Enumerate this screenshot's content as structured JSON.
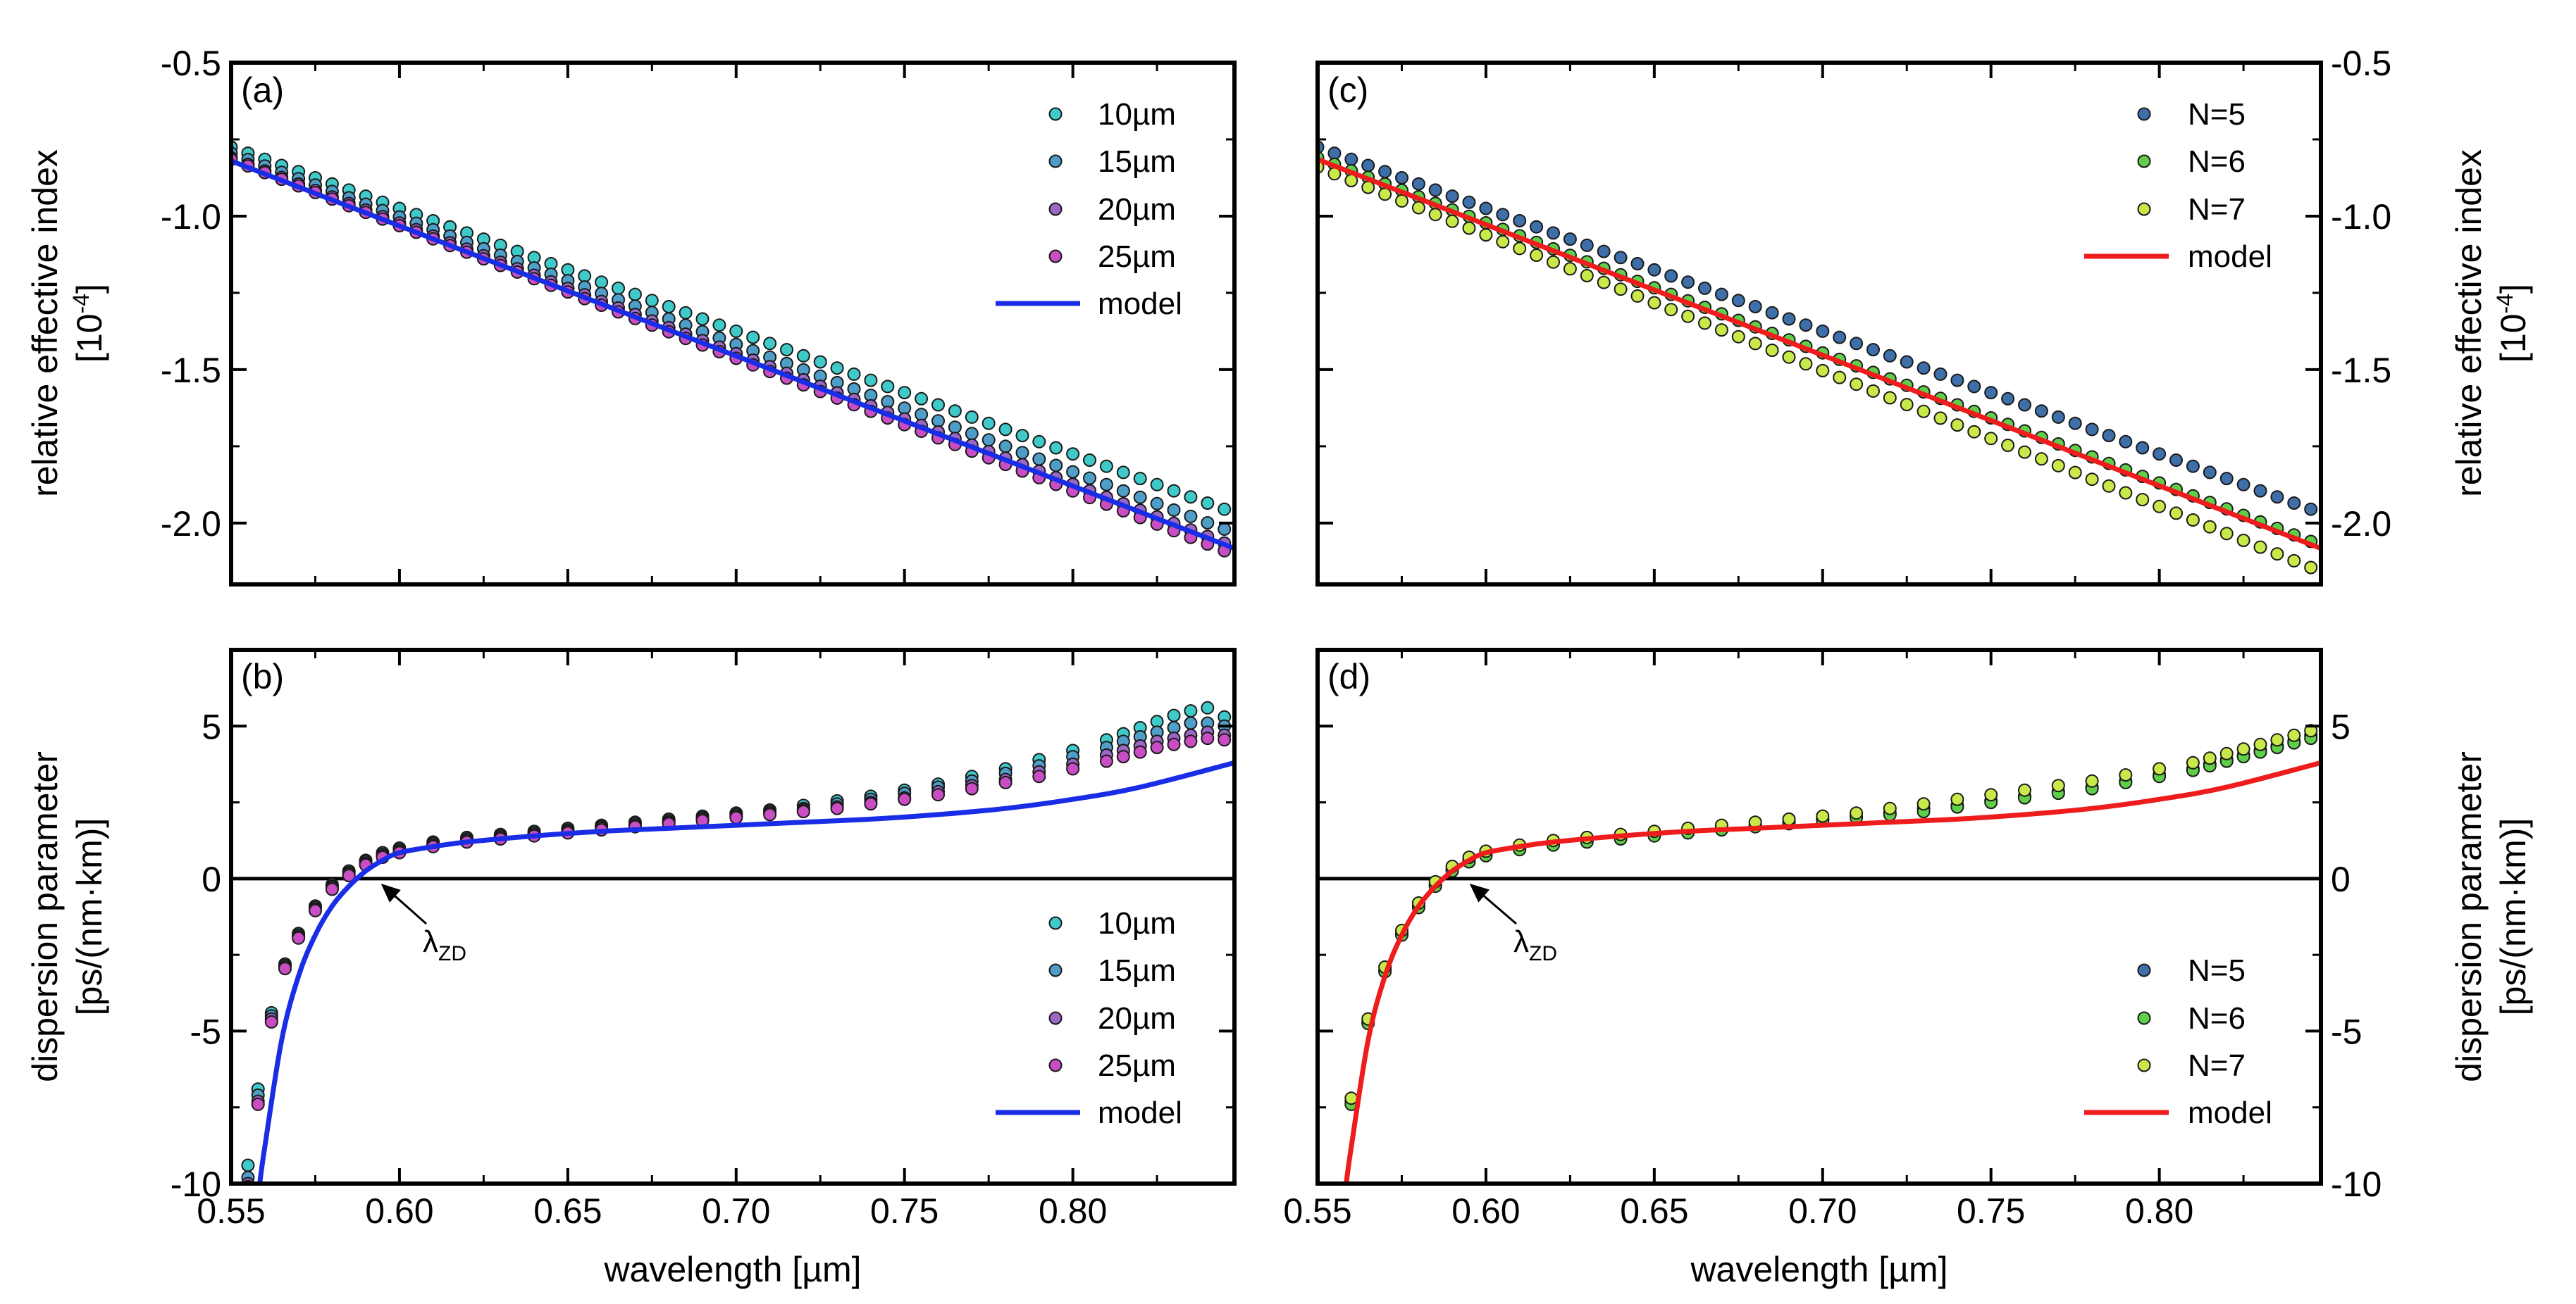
{
  "colors": {
    "10um": "#3fc9c9",
    "15um": "#4f9ec8",
    "20um": "#9b67c2",
    "25um": "#c94ec3",
    "model_ab": "#1a2de6",
    "N5": "#3e6fa8",
    "N6": "#5fcf4a",
    "N7": "#c9e84a",
    "model_cd": "#ee1c1c"
  },
  "xaxis": {
    "label": "wavelength [µm]",
    "ticks": [
      "0.55",
      "0.60",
      "0.65",
      "0.70",
      "0.75",
      "0.80"
    ],
    "range": [
      0.55,
      0.848
    ]
  },
  "top_yaxis": {
    "label_line1": "relative effective index",
    "label_line2_base": "[10",
    "label_line2_exp": "-4",
    "label_line2_end": "]",
    "ticks": [
      "-0.5",
      "-1.0",
      "-1.5",
      "-2.0"
    ],
    "range": [
      -2.2,
      -0.5
    ]
  },
  "bottom_yaxis": {
    "label_line1": "dispersion parameter",
    "label_line2": "[ps/(nm·km)]",
    "ticks": [
      "5",
      "0",
      "-5",
      "-10"
    ],
    "range": [
      -10,
      7.5
    ]
  },
  "annotation": {
    "lambda": "λ",
    "sub": "ZD",
    "x": 0.593
  },
  "chart_data": [
    {
      "panel": "(a)",
      "type": "scatter",
      "xlabel": "wavelength [µm]",
      "ylabel": "relative effective index [10^-4]",
      "xlim": [
        0.55,
        0.848
      ],
      "ylim": [
        -2.2,
        -0.5
      ],
      "legend": "top-right",
      "x": {
        "start": 0.55,
        "end": 0.845,
        "step": 0.005
      },
      "series": [
        {
          "name": "10µm",
          "kind": "points",
          "y_start": -0.775,
          "y_end": -1.955
        },
        {
          "name": "15µm",
          "kind": "points",
          "y_start": -0.795,
          "y_end": -2.02
        },
        {
          "name": "20µm",
          "kind": "points",
          "y_start": -0.81,
          "y_end": -2.065
        },
        {
          "name": "25µm",
          "kind": "points",
          "y_start": -0.815,
          "y_end": -2.09
        },
        {
          "name": "model",
          "kind": "line",
          "y_start": -0.82,
          "y_end": -2.07
        }
      ]
    },
    {
      "panel": "(b)",
      "type": "scatter",
      "xlabel": "wavelength [µm]",
      "ylabel": "dispersion parameter [ps/(nm·km)]",
      "xlim": [
        0.55,
        0.848
      ],
      "ylim": [
        -10,
        7.5
      ],
      "legend": "bottom-right",
      "x_points": [
        0.555,
        0.558,
        0.562,
        0.566,
        0.57,
        0.575,
        0.58,
        0.585,
        0.59,
        0.595,
        0.6,
        0.61,
        0.62,
        0.63,
        0.64,
        0.65,
        0.66,
        0.67,
        0.68,
        0.69,
        0.7,
        0.71,
        0.72,
        0.73,
        0.74,
        0.75,
        0.76,
        0.77,
        0.78,
        0.79,
        0.8,
        0.81,
        0.815,
        0.82,
        0.825,
        0.83,
        0.835,
        0.84,
        0.845
      ],
      "series": [
        {
          "name": "10µm",
          "kind": "points",
          "values": [
            -9.4,
            -6.9,
            -4.4,
            -2.8,
            -1.8,
            -0.9,
            -0.2,
            0.25,
            0.6,
            0.85,
            1.0,
            1.2,
            1.35,
            1.45,
            1.55,
            1.65,
            1.75,
            1.85,
            1.95,
            2.05,
            2.15,
            2.25,
            2.4,
            2.55,
            2.7,
            2.9,
            3.1,
            3.35,
            3.6,
            3.9,
            4.2,
            4.55,
            4.75,
            4.95,
            5.15,
            5.35,
            5.5,
            5.6,
            5.3
          ]
        },
        {
          "name": "15µm",
          "kind": "points",
          "values": [
            -9.8,
            -7.1,
            -4.5,
            -2.85,
            -1.85,
            -0.95,
            -0.25,
            0.2,
            0.55,
            0.8,
            0.95,
            1.15,
            1.3,
            1.4,
            1.5,
            1.6,
            1.7,
            1.8,
            1.9,
            2.0,
            2.1,
            2.2,
            2.3,
            2.45,
            2.6,
            2.8,
            3.0,
            3.2,
            3.45,
            3.7,
            4.0,
            4.3,
            4.5,
            4.65,
            4.8,
            4.95,
            5.1,
            5.1,
            5.0
          ]
        },
        {
          "name": "20µm",
          "kind": "points",
          "values": [
            -10.0,
            -7.3,
            -4.6,
            -2.9,
            -1.9,
            -1.0,
            -0.3,
            0.15,
            0.5,
            0.75,
            0.9,
            1.1,
            1.25,
            1.35,
            1.45,
            1.55,
            1.65,
            1.75,
            1.85,
            1.95,
            2.05,
            2.15,
            2.25,
            2.35,
            2.5,
            2.65,
            2.85,
            3.05,
            3.25,
            3.5,
            3.75,
            4.05,
            4.2,
            4.35,
            4.5,
            4.6,
            4.7,
            4.8,
            4.7
          ]
        },
        {
          "name": "25µm",
          "kind": "points",
          "values": [
            -10.1,
            -7.4,
            -4.7,
            -2.95,
            -1.95,
            -1.05,
            -0.35,
            0.1,
            0.45,
            0.7,
            0.85,
            1.05,
            1.2,
            1.3,
            1.4,
            1.5,
            1.6,
            1.7,
            1.8,
            1.9,
            2.0,
            2.1,
            2.2,
            2.3,
            2.45,
            2.6,
            2.75,
            2.95,
            3.15,
            3.35,
            3.6,
            3.85,
            4.0,
            4.15,
            4.3,
            4.4,
            4.5,
            4.6,
            4.55
          ]
        },
        {
          "name": "model",
          "kind": "line",
          "x": [
            0.5585,
            0.56,
            0.565,
            0.57,
            0.575,
            0.58,
            0.585,
            0.59,
            0.595,
            0.6,
            0.61,
            0.62,
            0.64,
            0.66,
            0.68,
            0.7,
            0.72,
            0.74,
            0.76,
            0.78,
            0.8,
            0.82,
            0.848
          ],
          "values": [
            -10.0,
            -8.8,
            -5.3,
            -3.2,
            -1.85,
            -0.9,
            -0.25,
            0.25,
            0.6,
            0.85,
            1.05,
            1.2,
            1.4,
            1.55,
            1.65,
            1.75,
            1.85,
            1.95,
            2.1,
            2.3,
            2.6,
            3.0,
            3.8
          ]
        }
      ]
    },
    {
      "panel": "(c)",
      "type": "scatter",
      "xlabel": "wavelength [µm]",
      "ylabel": "relative effective index [10^-4]",
      "xlim": [
        0.55,
        0.848
      ],
      "ylim": [
        -2.2,
        -0.5
      ],
      "legend": "top-right",
      "x": {
        "start": 0.55,
        "end": 0.845,
        "step": 0.005
      },
      "series": [
        {
          "name": "N=5",
          "kind": "points",
          "y_start": -0.775,
          "y_end": -1.955
        },
        {
          "name": "N=6",
          "kind": "points",
          "y_start": -0.81,
          "y_end": -2.06
        },
        {
          "name": "N=7",
          "kind": "points",
          "y_start": -0.84,
          "y_end": -2.145
        },
        {
          "name": "model",
          "kind": "line",
          "y_start": -0.815,
          "y_end": -2.07
        }
      ]
    },
    {
      "panel": "(d)",
      "type": "scatter",
      "xlabel": "wavelength [µm]",
      "ylabel": "dispersion parameter [ps/(nm·km)]",
      "xlim": [
        0.55,
        0.848
      ],
      "ylim": [
        -10,
        7.5
      ],
      "legend": "bottom-right",
      "x_points": [
        0.56,
        0.565,
        0.57,
        0.575,
        0.58,
        0.585,
        0.59,
        0.595,
        0.6,
        0.61,
        0.62,
        0.63,
        0.64,
        0.65,
        0.66,
        0.67,
        0.68,
        0.69,
        0.7,
        0.71,
        0.72,
        0.73,
        0.74,
        0.75,
        0.76,
        0.77,
        0.78,
        0.79,
        0.8,
        0.81,
        0.815,
        0.82,
        0.825,
        0.83,
        0.835,
        0.84,
        0.845
      ],
      "series": [
        {
          "name": "N=5",
          "kind": "points",
          "values": [
            -7.3,
            -4.7,
            -3.0,
            -1.8,
            -0.9,
            -0.2,
            0.3,
            0.6,
            0.8,
            1.0,
            1.15,
            1.25,
            1.35,
            1.45,
            1.55,
            1.65,
            1.75,
            1.85,
            1.95,
            2.05,
            2.15,
            2.3,
            2.4,
            2.55,
            2.7,
            2.85,
            3.0,
            3.2,
            3.4,
            3.6,
            3.75,
            3.9,
            4.05,
            4.2,
            4.35,
            4.5,
            4.7
          ]
        },
        {
          "name": "N=6",
          "kind": "points",
          "values": [
            -7.4,
            -4.75,
            -3.05,
            -1.85,
            -0.95,
            -0.25,
            0.25,
            0.55,
            0.75,
            0.95,
            1.1,
            1.2,
            1.3,
            1.4,
            1.5,
            1.6,
            1.7,
            1.8,
            1.9,
            2.0,
            2.1,
            2.2,
            2.35,
            2.5,
            2.65,
            2.8,
            2.95,
            3.15,
            3.35,
            3.55,
            3.7,
            3.85,
            4.0,
            4.15,
            4.3,
            4.45,
            4.6
          ]
        },
        {
          "name": "N=7",
          "kind": "points",
          "values": [
            -7.2,
            -4.6,
            -2.9,
            -1.7,
            -0.8,
            -0.1,
            0.4,
            0.7,
            0.9,
            1.1,
            1.25,
            1.35,
            1.45,
            1.55,
            1.65,
            1.75,
            1.85,
            1.95,
            2.05,
            2.15,
            2.3,
            2.45,
            2.6,
            2.75,
            2.9,
            3.05,
            3.2,
            3.4,
            3.6,
            3.8,
            3.95,
            4.1,
            4.25,
            4.4,
            4.55,
            4.7,
            4.85
          ]
        },
        {
          "name": "model",
          "kind": "line",
          "x": [
            0.5585,
            0.56,
            0.565,
            0.57,
            0.575,
            0.58,
            0.585,
            0.59,
            0.595,
            0.6,
            0.61,
            0.62,
            0.64,
            0.66,
            0.68,
            0.7,
            0.72,
            0.74,
            0.76,
            0.78,
            0.8,
            0.82,
            0.848
          ],
          "values": [
            -10.0,
            -8.8,
            -5.3,
            -3.2,
            -1.85,
            -0.9,
            -0.25,
            0.25,
            0.6,
            0.85,
            1.05,
            1.2,
            1.4,
            1.55,
            1.65,
            1.75,
            1.85,
            1.95,
            2.1,
            2.3,
            2.6,
            3.0,
            3.8
          ]
        }
      ]
    }
  ]
}
